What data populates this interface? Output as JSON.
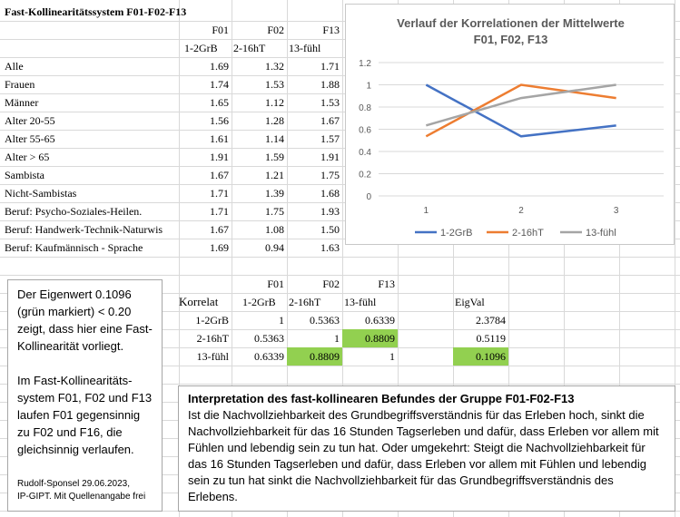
{
  "sheet": {
    "title": "Fast-Kollinearitätssystem F01-F02-F13",
    "col_headers": [
      "F01",
      "F02",
      "F13"
    ],
    "col_subheaders": [
      "1-2GrB",
      "2-16hT",
      "13-fühl"
    ],
    "rows": [
      {
        "label": "Alle",
        "v": [
          "1.69",
          "1.32",
          "1.71"
        ]
      },
      {
        "label": "Frauen",
        "v": [
          "1.74",
          "1.53",
          "1.88"
        ]
      },
      {
        "label": "Männer",
        "v": [
          "1.65",
          "1.12",
          "1.53"
        ]
      },
      {
        "label": "Alter 20-55",
        "v": [
          "1.56",
          "1.28",
          "1.67"
        ]
      },
      {
        "label": "Alter 55-65",
        "v": [
          "1.61",
          "1.14",
          "1.57"
        ]
      },
      {
        "label": "Alter > 65",
        "v": [
          "1.91",
          "1.59",
          "1.91"
        ]
      },
      {
        "label": "Sambista",
        "v": [
          "1.67",
          "1.21",
          "1.75"
        ]
      },
      {
        "label": "Nicht-Sambistas",
        "v": [
          "1.71",
          "1.39",
          "1.68"
        ]
      },
      {
        "label": "Beruf: Psycho-Soziales-Heilen.",
        "v": [
          "1.71",
          "1.75",
          "1.93"
        ]
      },
      {
        "label": "Beruf: Handwerk-Technik-Naturwis",
        "v": [
          "1.67",
          "1.08",
          "1.50"
        ]
      },
      {
        "label": "Beruf: Kaufmännisch - Sprache",
        "v": [
          "1.69",
          "0.94",
          "1.63"
        ]
      }
    ]
  },
  "corr": {
    "col_headers": [
      "F01",
      "F02",
      "F13"
    ],
    "label": "Korrelat",
    "col_subheaders": [
      "1-2GrB",
      "2-16hT",
      "13-fühl"
    ],
    "eig_header": "EigVal",
    "rows": [
      {
        "label": "1-2GrB",
        "v": [
          "1",
          "0.5363",
          "0.6339"
        ],
        "eig": "2.3784"
      },
      {
        "label": "2-16hT",
        "v": [
          "0.5363",
          "1",
          "0.8809"
        ],
        "eig": "0.5119"
      },
      {
        "label": "13-fühl",
        "v": [
          "0.6339",
          "0.8809",
          "1"
        ],
        "eig": "0.1096"
      }
    ]
  },
  "chart_data": {
    "type": "line",
    "title": "Verlauf der Korrelationen der Mittelwerte",
    "subtitle": "F01, F02, F13",
    "categories": [
      "1",
      "2",
      "3"
    ],
    "series": [
      {
        "name": "1-2GrB",
        "values": [
          1,
          0.5363,
          0.6339
        ],
        "color": "#4472c4"
      },
      {
        "name": "2-16hT",
        "values": [
          0.5363,
          1,
          0.8809
        ],
        "color": "#ed7d31"
      },
      {
        "name": "13-fühl",
        "values": [
          0.6339,
          0.8809,
          1
        ],
        "color": "#a5a5a5"
      }
    ],
    "ylim": [
      0,
      1.2
    ],
    "yticks": [
      "0",
      "0.2",
      "0.4",
      "0.6",
      "0.8",
      "1",
      "1.2"
    ],
    "grid": true,
    "legend": "bottom"
  },
  "note": {
    "para1": "Der Eigenwert 0.1096 (grün markiert) < 0.20 zeigt, dass hier eine Fast-Kollinearität vorliegt.",
    "para2": "Im Fast-Kollinearitäts-system F01, F02 und F13 laufen F01 gegensinnig zu F02 und F16, die gleichsinnig verlaufen.",
    "sig1": "Rudolf-Sponsel 29.06.2023,",
    "sig2": "IP-GIPT. Mit Quellenangabe frei"
  },
  "interp": {
    "title": "Interpretation des fast-kollinearen Befundes der Gruppe F01-F02-F13",
    "body": "Ist die Nachvollziehbarkeit des Grundbegriffsverständnis für das Erleben hoch, sinkt die Nachvollziehbarkeit  für das 16 Stunden Tagserleben und dafür, dass Erleben vor allem mit Fühlen und lebendig sein zu tun hat. Oder umgekehrt: Steigt die Nachvollziehbarkeit für das 16 Stunden Tagserleben und dafür, dass Erleben vor allem mit Fühlen und lebendig sein zu tun hat sinkt die Nachvollziehbarkeit für das Grundbegriffsverständnis des Erlebens."
  },
  "colors": {
    "highlight": "#92d050",
    "grid": "#d9d9d9"
  }
}
